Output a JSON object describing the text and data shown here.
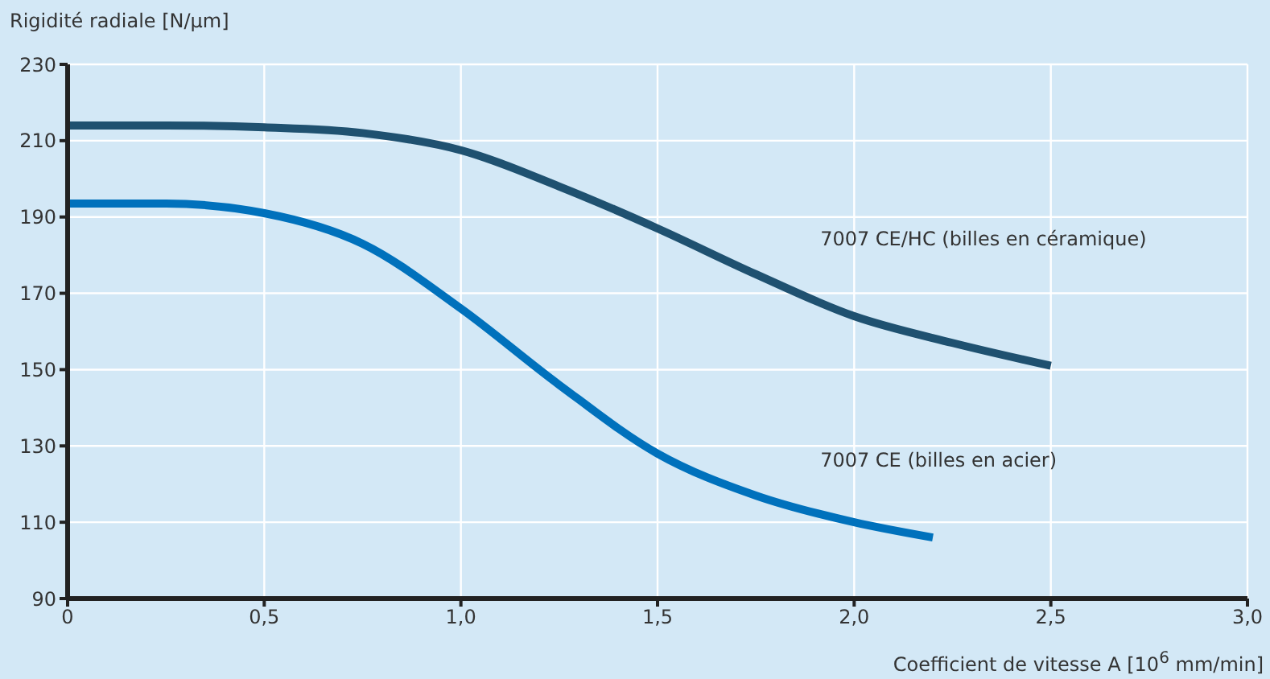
{
  "chart_data": {
    "type": "line",
    "xlabel": "Coefficient de vitesse A [10$^{6}$ mm/min]",
    "ylabel": "Rigidité radiale [N/µm]",
    "series": [
      {
        "name": "7007 CE/HC (billes en céramique)",
        "color": "#1f5170",
        "x": [
          0,
          0.25,
          0.5,
          0.75,
          1.0,
          1.25,
          1.5,
          1.75,
          2.0,
          2.25,
          2.5
        ],
        "values": [
          214,
          214,
          213.5,
          212,
          207.5,
          198,
          187,
          175,
          164,
          157,
          151
        ]
      },
      {
        "name": "7007 CE (billes en acier)",
        "color": "#0071bc",
        "x": [
          0,
          0.25,
          0.5,
          0.75,
          1.0,
          1.25,
          1.5,
          1.75,
          2.0,
          2.2
        ],
        "values": [
          193.5,
          193.5,
          191,
          183,
          166,
          146,
          128,
          117,
          110,
          106
        ]
      }
    ],
    "xlim": [
      0,
      3
    ],
    "xticks": [
      0,
      {
        "value": 0.5,
        "label": "0,5"
      },
      {
        "value": 1,
        "label": "1,0"
      },
      {
        "value": 1.5,
        "label": "1,5"
      },
      {
        "value": 2,
        "label": "2,0"
      },
      {
        "value": 2.5,
        "label": "2,5"
      },
      {
        "value": 3,
        "label": "3,0"
      }
    ],
    "ylim": [
      90,
      230
    ],
    "yticks": [
      90,
      110,
      130,
      150,
      170,
      190,
      210,
      230
    ],
    "grid": true,
    "legend": false,
    "marker": "none",
    "line_style": "solid"
  }
}
